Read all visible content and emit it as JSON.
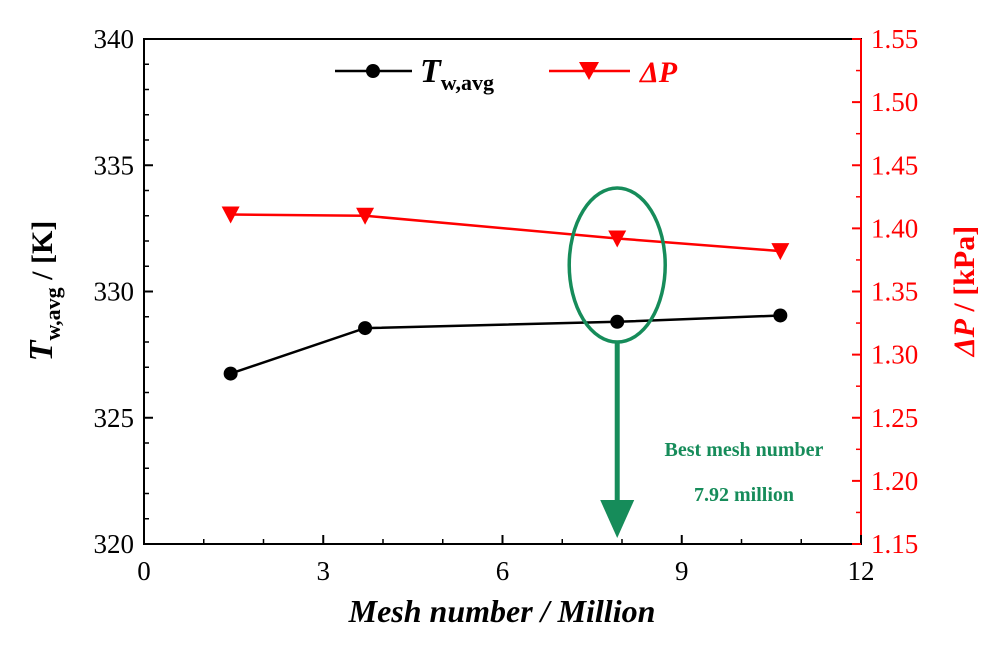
{
  "chart_data": {
    "type": "line",
    "xlabel": "Mesh number / Million",
    "xlim": [
      0,
      12
    ],
    "x_ticks": [
      "0",
      "3",
      "6",
      "9",
      "12"
    ],
    "left_axis": {
      "label_symbol": "T",
      "label_subscript": "w,avg",
      "label_unit": " / [K]",
      "ylim": [
        320,
        340
      ],
      "ticks": [
        "320",
        "325",
        "330",
        "335",
        "340"
      ]
    },
    "right_axis": {
      "label_symbol": "ΔP",
      "label_unit": " / [kPa]",
      "ylim": [
        1.15,
        1.55
      ],
      "ticks": [
        "1.15",
        "1.20",
        "1.25",
        "1.30",
        "1.35",
        "1.40",
        "1.45",
        "1.50",
        "1.55"
      ]
    },
    "series": [
      {
        "name": "Tw,avg",
        "legend_symbol": "T",
        "legend_subscript": "w,avg",
        "axis": "left",
        "marker": "circle",
        "color": "#000000",
        "x": [
          1.45,
          3.7,
          7.92,
          10.65
        ],
        "y": [
          326.75,
          328.55,
          328.8,
          329.05
        ]
      },
      {
        "name": "ΔP",
        "legend_symbol": "ΔP",
        "axis": "right",
        "marker": "triangle-down",
        "color": "#ff0000",
        "x": [
          1.45,
          3.7,
          7.92,
          10.65
        ],
        "y": [
          1.411,
          1.41,
          1.392,
          1.382
        ]
      }
    ],
    "legend_position": "top",
    "annotation": {
      "line1": "Best mesh number",
      "line2": "7.92 million",
      "color": "#168c5a",
      "highlight_x": 7.92
    }
  }
}
